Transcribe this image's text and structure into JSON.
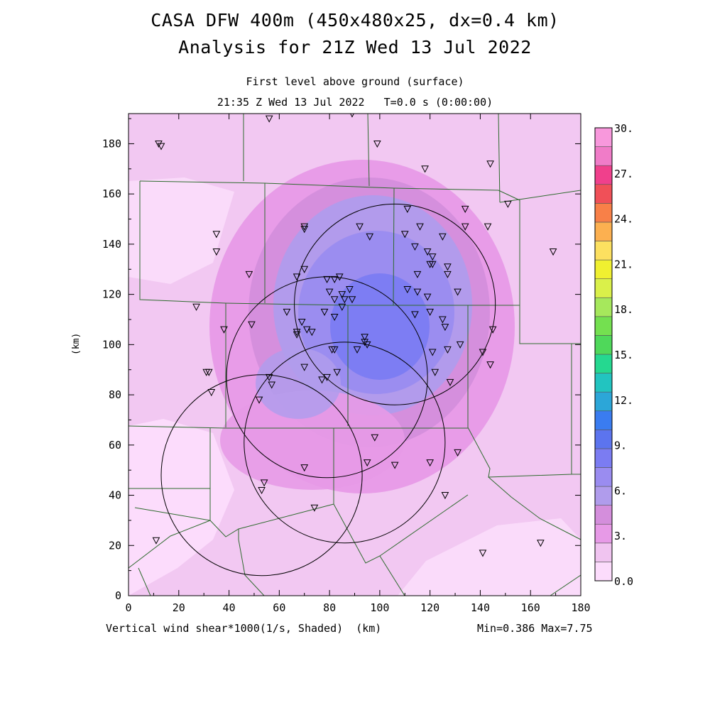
{
  "header": {
    "title_line1": "CASA DFW 400m (450x480x25, dx=0.4 km)",
    "title_line2": "Analysis for 21Z Wed 13 Jul 2022",
    "subtitle_line1": "First level above ground (surface)",
    "subtitle_line2": "21:35 Z Wed 13 Jul 2022   T=0.0 s (0:00:00)"
  },
  "footer": {
    "variable_label": "Vertical wind shear*1000(1/s, Shaded)  (km)",
    "minmax": "Min=0.386 Max=7.75"
  },
  "colors": {
    "background": "#ffffff",
    "county_lines": "#2e6b2e",
    "radar_rings": "#000000",
    "stations": "#000000"
  },
  "chart_data": {
    "type": "heatmap",
    "title": "CASA DFW 400m (450x480x25, dx=0.4 km) Analysis for 21Z Wed 13 Jul 2022",
    "xlabel": "(km)",
    "ylabel": "(km)",
    "xlim": [
      0,
      180
    ],
    "ylim": [
      0,
      192
    ],
    "x_ticks": [
      0,
      20,
      40,
      60,
      80,
      100,
      120,
      140,
      160,
      180
    ],
    "y_ticks": [
      0,
      20,
      40,
      60,
      80,
      100,
      120,
      140,
      160,
      180
    ],
    "colorbar": {
      "tick_labels": [
        "0.0",
        "3.",
        "6.",
        "9.",
        "12.",
        "15.",
        "18.",
        "21.",
        "24.",
        "27.",
        "30."
      ],
      "levels": [
        0,
        1.5,
        3,
        4.5,
        6,
        7.5,
        9,
        10.5,
        12,
        13.5,
        15,
        16.5,
        18,
        19.5,
        21,
        22.5,
        24,
        25.5,
        27,
        28.5,
        30
      ],
      "colors": [
        "#fcdcfc",
        "#f0c4f0",
        "#e79ae7",
        "#d48edc",
        "#b09cec",
        "#9a8cf0",
        "#7b7cf2",
        "#5c74ee",
        "#3a7cf0",
        "#2ca6d8",
        "#22c4c0",
        "#25d890",
        "#4fd85a",
        "#74e050",
        "#a6e85c",
        "#daf04a",
        "#f0f030",
        "#fce060",
        "#fcb050",
        "#f88048",
        "#f05058",
        "#f0408c",
        "#f07cc8",
        "#f898dc"
      ]
    },
    "shear_field": {
      "min": 0.386,
      "max": 7.75,
      "max_location_km": [
        100,
        103
      ],
      "contour_levels_shown": [
        1.5,
        3,
        4.5,
        6,
        7.5
      ]
    },
    "radar_rings": [
      {
        "name": "ring-northeast",
        "center_km": [
          106,
          116
        ],
        "radius_km": 40
      },
      {
        "name": "ring-central",
        "center_km": [
          79,
          87
        ],
        "radius_km": 40
      },
      {
        "name": "ring-southeast",
        "center_km": [
          86,
          61
        ],
        "radius_km": 40
      },
      {
        "name": "ring-southwest",
        "center_km": [
          53,
          48
        ],
        "radius_km": 40
      }
    ],
    "stations_km": [
      [
        12,
        180
      ],
      [
        13,
        179
      ],
      [
        56,
        190
      ],
      [
        89,
        192
      ],
      [
        99,
        180
      ],
      [
        118,
        170
      ],
      [
        144,
        172
      ],
      [
        151,
        156
      ],
      [
        169,
        137
      ],
      [
        35,
        144
      ],
      [
        35,
        137
      ],
      [
        70,
        147
      ],
      [
        70,
        146
      ],
      [
        111,
        154
      ],
      [
        134,
        154
      ],
      [
        143,
        147
      ],
      [
        134,
        147
      ],
      [
        92,
        147
      ],
      [
        110,
        144
      ],
      [
        116,
        147
      ],
      [
        125,
        143
      ],
      [
        96,
        143
      ],
      [
        114,
        139
      ],
      [
        119,
        137
      ],
      [
        121,
        135
      ],
      [
        121,
        132
      ],
      [
        120,
        132
      ],
      [
        127,
        131
      ],
      [
        127,
        128
      ],
      [
        115,
        128
      ],
      [
        48,
        128
      ],
      [
        67,
        127
      ],
      [
        70,
        130
      ],
      [
        79,
        126
      ],
      [
        84,
        127
      ],
      [
        82,
        126
      ],
      [
        88,
        122
      ],
      [
        80,
        121
      ],
      [
        82,
        118
      ],
      [
        89,
        118
      ],
      [
        85,
        120
      ],
      [
        86,
        118
      ],
      [
        85,
        115
      ],
      [
        111,
        122
      ],
      [
        115,
        121
      ],
      [
        119,
        119
      ],
      [
        131,
        121
      ],
      [
        27,
        115
      ],
      [
        63,
        113
      ],
      [
        78,
        113
      ],
      [
        82,
        111
      ],
      [
        114,
        112
      ],
      [
        120,
        113
      ],
      [
        125,
        110
      ],
      [
        126,
        107
      ],
      [
        69,
        109
      ],
      [
        49,
        108
      ],
      [
        38,
        106
      ],
      [
        71,
        106
      ],
      [
        73,
        105
      ],
      [
        67,
        105
      ],
      [
        67,
        104
      ],
      [
        145,
        106
      ],
      [
        94,
        103
      ],
      [
        94,
        101
      ],
      [
        95,
        100
      ],
      [
        91,
        98
      ],
      [
        81,
        98
      ],
      [
        82,
        98
      ],
      [
        121,
        97
      ],
      [
        127,
        98
      ],
      [
        132,
        100
      ],
      [
        141,
        97
      ],
      [
        144,
        92
      ],
      [
        31,
        89
      ],
      [
        32,
        89
      ],
      [
        70,
        91
      ],
      [
        83,
        89
      ],
      [
        122,
        89
      ],
      [
        128,
        85
      ],
      [
        56,
        87
      ],
      [
        79,
        87
      ],
      [
        77,
        86
      ],
      [
        57,
        84
      ],
      [
        33,
        81
      ],
      [
        52,
        78
      ],
      [
        98,
        63
      ],
      [
        131,
        57
      ],
      [
        95,
        53
      ],
      [
        70,
        51
      ],
      [
        106,
        52
      ],
      [
        120,
        53
      ],
      [
        54,
        45
      ],
      [
        53,
        42
      ],
      [
        74,
        35
      ],
      [
        126,
        40
      ],
      [
        11,
        22
      ],
      [
        141,
        17
      ],
      [
        164,
        21
      ]
    ]
  }
}
